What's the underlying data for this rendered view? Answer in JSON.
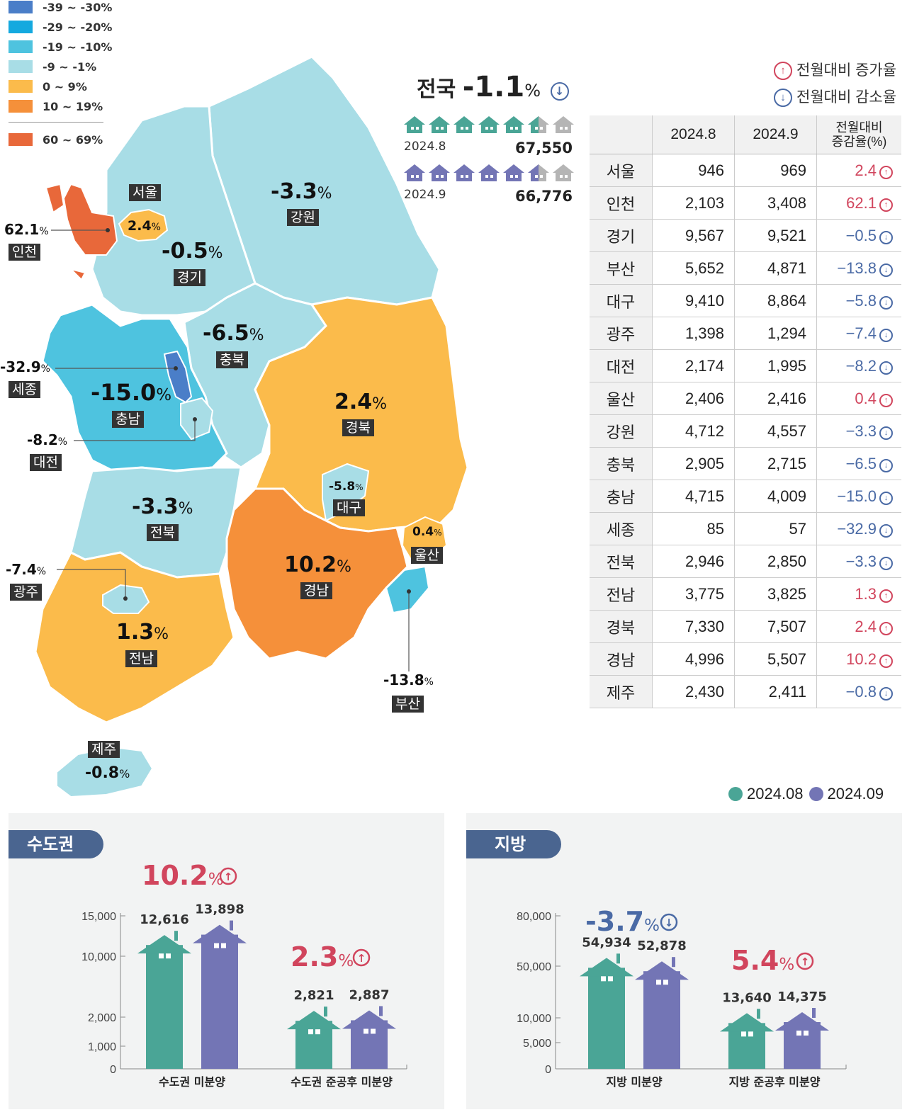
{
  "legend": [
    {
      "label": "-39 ~ -30%",
      "color": "#4a7ec8"
    },
    {
      "label": "-29 ~ -20%",
      "color": "#14a9df"
    },
    {
      "label": "-19 ~ -10%",
      "color": "#4ec3df"
    },
    {
      "label": "-9 ~ -1%",
      "color": "#a8dde6"
    },
    {
      "label": "0 ~ 9%",
      "color": "#fbbb4b"
    },
    {
      "label": "10 ~ 19%",
      "color": "#f5903a"
    },
    {
      "label": "60 ~ 69%",
      "color": "#e8683a"
    }
  ],
  "national": {
    "label": "전국",
    "value": "-1.1",
    "unit": "%"
  },
  "summary": [
    {
      "period": "2024.8",
      "total": "67,550",
      "color": "#4aa596"
    },
    {
      "period": "2024.9",
      "total": "66,776",
      "color": "#7375b5"
    }
  ],
  "key": {
    "up": "전월대비 증가율",
    "down": "전월대비 감소율"
  },
  "map_regions": [
    {
      "name": "서울",
      "value": "2.4",
      "color": "#fbbb4b"
    },
    {
      "name": "인천",
      "value": "62.1",
      "color": "#e8683a"
    },
    {
      "name": "경기",
      "value": "-0.5",
      "color": "#a8dde6"
    },
    {
      "name": "강원",
      "value": "-3.3",
      "color": "#a8dde6"
    },
    {
      "name": "충북",
      "value": "-6.5",
      "color": "#a8dde6"
    },
    {
      "name": "세종",
      "value": "-32.9",
      "color": "#4a7ec8"
    },
    {
      "name": "충남",
      "value": "-15.0",
      "color": "#4ec3df"
    },
    {
      "name": "대전",
      "value": "-8.2",
      "color": "#a8dde6"
    },
    {
      "name": "경북",
      "value": "2.4",
      "color": "#fbbb4b"
    },
    {
      "name": "대구",
      "value": "-5.8",
      "color": "#a8dde6"
    },
    {
      "name": "전북",
      "value": "-3.3",
      "color": "#a8dde6"
    },
    {
      "name": "울산",
      "value": "0.4",
      "color": "#fbbb4b"
    },
    {
      "name": "광주",
      "value": "-7.4",
      "color": "#a8dde6"
    },
    {
      "name": "경남",
      "value": "10.2",
      "color": "#f5903a"
    },
    {
      "name": "전남",
      "value": "1.3",
      "color": "#fbbb4b"
    },
    {
      "name": "부산",
      "value": "-13.8",
      "color": "#4ec3df"
    },
    {
      "name": "제주",
      "value": "-0.8",
      "color": "#a8dde6"
    }
  ],
  "table": {
    "headers": [
      "",
      "2024.8",
      "2024.9",
      "전월대비\n증감율(%)"
    ],
    "rows": [
      {
        "region": "서울",
        "aug": "946",
        "sep": "969",
        "change": "2.4",
        "dir": "up"
      },
      {
        "region": "인천",
        "aug": "2,103",
        "sep": "3,408",
        "change": "62.1",
        "dir": "up"
      },
      {
        "region": "경기",
        "aug": "9,567",
        "sep": "9,521",
        "change": "−0.5",
        "dir": "down"
      },
      {
        "region": "부산",
        "aug": "5,652",
        "sep": "4,871",
        "change": "−13.8",
        "dir": "down"
      },
      {
        "region": "대구",
        "aug": "9,410",
        "sep": "8,864",
        "change": "−5.8",
        "dir": "down"
      },
      {
        "region": "광주",
        "aug": "1,398",
        "sep": "1,294",
        "change": "−7.4",
        "dir": "down"
      },
      {
        "region": "대전",
        "aug": "2,174",
        "sep": "1,995",
        "change": "−8.2",
        "dir": "down"
      },
      {
        "region": "울산",
        "aug": "2,406",
        "sep": "2,416",
        "change": "0.4",
        "dir": "up"
      },
      {
        "region": "강원",
        "aug": "4,712",
        "sep": "4,557",
        "change": "−3.3",
        "dir": "down"
      },
      {
        "region": "충북",
        "aug": "2,905",
        "sep": "2,715",
        "change": "−6.5",
        "dir": "down"
      },
      {
        "region": "충남",
        "aug": "4,715",
        "sep": "4,009",
        "change": "−15.0",
        "dir": "down"
      },
      {
        "region": "세종",
        "aug": "85",
        "sep": "57",
        "change": "−32.9",
        "dir": "down"
      },
      {
        "region": "전북",
        "aug": "2,946",
        "sep": "2,850",
        "change": "−3.3",
        "dir": "down"
      },
      {
        "region": "전남",
        "aug": "3,775",
        "sep": "3,825",
        "change": "1.3",
        "dir": "up"
      },
      {
        "region": "경북",
        "aug": "7,330",
        "sep": "7,507",
        "change": "2.4",
        "dir": "up"
      },
      {
        "region": "경남",
        "aug": "4,996",
        "sep": "5,507",
        "change": "10.2",
        "dir": "up"
      },
      {
        "region": "제주",
        "aug": "2,430",
        "sep": "2,411",
        "change": "−0.8",
        "dir": "down"
      }
    ]
  },
  "chart_legend": [
    {
      "label": "2024.08",
      "color": "#4aa596"
    },
    {
      "label": "2024.09",
      "color": "#7375b5"
    }
  ],
  "chart_data": [
    {
      "type": "bar",
      "title": "수도권",
      "categories": [
        "수도권 미분양",
        "수도권 준공후 미분양"
      ],
      "series": [
        {
          "name": "2024.08",
          "values": [
            12616,
            2821
          ]
        },
        {
          "name": "2024.09",
          "values": [
            13898,
            2887
          ]
        }
      ],
      "value_labels": [
        [
          "12,616",
          "2,821"
        ],
        [
          "13,898",
          "2,887"
        ]
      ],
      "changes": [
        {
          "value": "10.2",
          "dir": "up"
        },
        {
          "value": "2.3",
          "dir": "up"
        }
      ],
      "yticks": [
        0,
        1000,
        2000,
        10000,
        15000
      ],
      "ytick_labels": [
        "0",
        "1,000",
        "2,000",
        "10,000",
        "15,000"
      ]
    },
    {
      "type": "bar",
      "title": "지방",
      "categories": [
        "지방 미분양",
        "지방 준공후 미분양"
      ],
      "series": [
        {
          "name": "2024.08",
          "values": [
            54934,
            13640
          ]
        },
        {
          "name": "2024.09",
          "values": [
            52878,
            14375
          ]
        }
      ],
      "value_labels": [
        [
          "54,934",
          "13,640"
        ],
        [
          "52,878",
          "14,375"
        ]
      ],
      "changes": [
        {
          "value": "-3.7",
          "dir": "down"
        },
        {
          "value": "5.4",
          "dir": "up"
        }
      ],
      "yticks": [
        0,
        5000,
        10000,
        50000,
        80000
      ],
      "ytick_labels": [
        "0",
        "5,000",
        "10,000",
        "50,000",
        "80,000"
      ]
    }
  ]
}
